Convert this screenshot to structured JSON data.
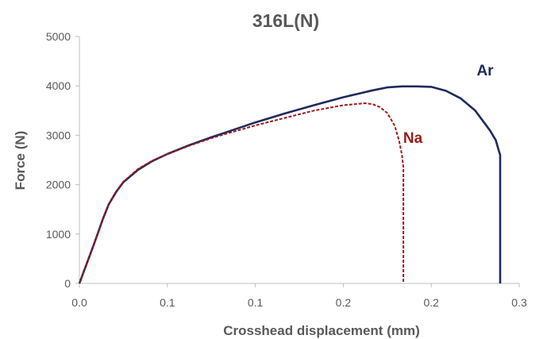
{
  "chart_data": {
    "type": "line",
    "title": "316L(N)",
    "xlabel": "Crosshead displacement (mm)",
    "ylabel": "Force (N)",
    "xlim": [
      0,
      0.3
    ],
    "ylim": [
      0,
      5000
    ],
    "x_tick_labels": [
      "0.0",
      "0.1",
      "0.1",
      "0.2",
      "0.2",
      "0.3"
    ],
    "y_tick_labels": [
      "0",
      "1000",
      "2000",
      "3000",
      "4000",
      "5000"
    ],
    "grid": false,
    "series": [
      {
        "name": "Ar",
        "color": "#1f2a5c",
        "style": "solid",
        "x": [
          0,
          0.01,
          0.016,
          0.02,
          0.025,
          0.03,
          0.04,
          0.05,
          0.06,
          0.075,
          0.09,
          0.1,
          0.12,
          0.14,
          0.16,
          0.18,
          0.2,
          0.21,
          0.22,
          0.23,
          0.24,
          0.25,
          0.26,
          0.27,
          0.275,
          0.28,
          0.284,
          0.286,
          0.287,
          0.287
        ],
        "y": [
          0,
          800,
          1300,
          1600,
          1850,
          2050,
          2300,
          2480,
          2620,
          2800,
          2960,
          3060,
          3260,
          3440,
          3610,
          3770,
          3910,
          3970,
          3990,
          3990,
          3980,
          3900,
          3750,
          3500,
          3300,
          3100,
          2900,
          2700,
          2600,
          0
        ]
      },
      {
        "name": "Na",
        "color": "#9b1b1b",
        "style": "dashed",
        "x": [
          0,
          0.01,
          0.016,
          0.02,
          0.025,
          0.03,
          0.04,
          0.05,
          0.06,
          0.075,
          0.09,
          0.1,
          0.12,
          0.14,
          0.16,
          0.18,
          0.195,
          0.2,
          0.205,
          0.21,
          0.215,
          0.218,
          0.22,
          0.221,
          0.221
        ],
        "y": [
          0,
          800,
          1300,
          1600,
          1860,
          2060,
          2320,
          2490,
          2620,
          2790,
          2940,
          3030,
          3200,
          3350,
          3500,
          3610,
          3650,
          3630,
          3570,
          3450,
          3200,
          2900,
          2600,
          2350,
          0
        ]
      }
    ]
  }
}
